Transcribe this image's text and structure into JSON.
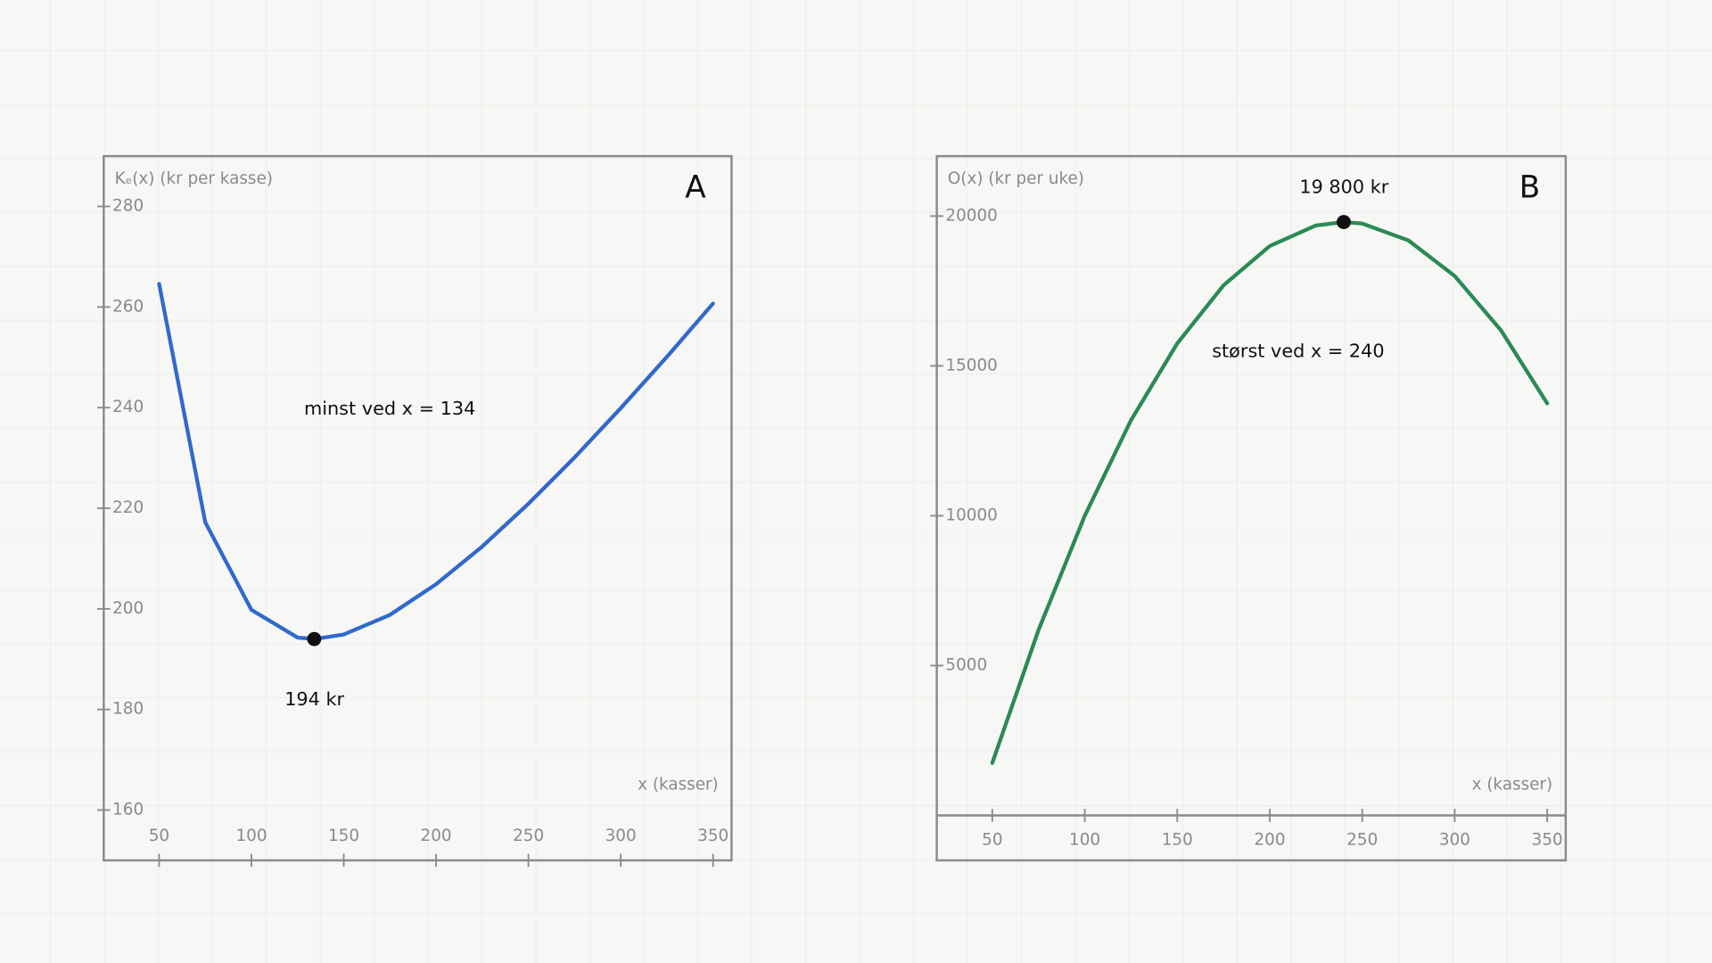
{
  "chart_data": [
    {
      "type": "line",
      "panel": "A",
      "y_label": "Kₑ(x) (kr per kasse)",
      "x_label": "x (kasser)",
      "x": [
        50,
        75,
        100,
        125,
        134,
        150,
        175,
        200,
        225,
        250,
        275,
        300,
        325,
        350
      ],
      "series": [
        {
          "color": "#3169cc",
          "values": [
            264.6,
            217.2,
            199.8,
            194.3,
            194,
            194.9,
            198.8,
            204.9,
            212.4,
            220.9,
            230.1,
            239.9,
            250.1,
            260.7
          ]
        }
      ],
      "xlim": [
        20,
        360
      ],
      "ylim": [
        150,
        290
      ],
      "xticks": [
        50,
        100,
        150,
        200,
        250,
        300,
        350
      ],
      "yticks": [
        160,
        180,
        200,
        220,
        240,
        260,
        280
      ],
      "marker": {
        "x": 134,
        "y": 194
      },
      "annotations": [
        {
          "text": "minst ved x = 134"
        },
        {
          "text": "194 kr"
        }
      ]
    },
    {
      "type": "line",
      "panel": "B",
      "y_label": "O(x) (kr per uke)",
      "x_label": "x (kasser)",
      "x": [
        50,
        75,
        100,
        125,
        150,
        175,
        200,
        225,
        240,
        250,
        275,
        300,
        325,
        350
      ],
      "series": [
        {
          "color": "#2b8a55",
          "values": [
            1750,
            6187.5,
            10000,
            13187.5,
            15750,
            17687.5,
            19000,
            19687.5,
            19800,
            19750,
            19187.5,
            18000,
            16187.5,
            13750
          ]
        }
      ],
      "xlim": [
        20,
        360
      ],
      "ylim": [
        -1500,
        22000
      ],
      "xticks": [
        50,
        100,
        150,
        200,
        250,
        300,
        350
      ],
      "yticks": [
        5000,
        10000,
        15000,
        20000
      ],
      "marker": {
        "x": 240,
        "y": 19800
      },
      "annotations": [
        {
          "text": "19 800 kr"
        },
        {
          "text": "størst ved x = 240"
        }
      ]
    }
  ]
}
